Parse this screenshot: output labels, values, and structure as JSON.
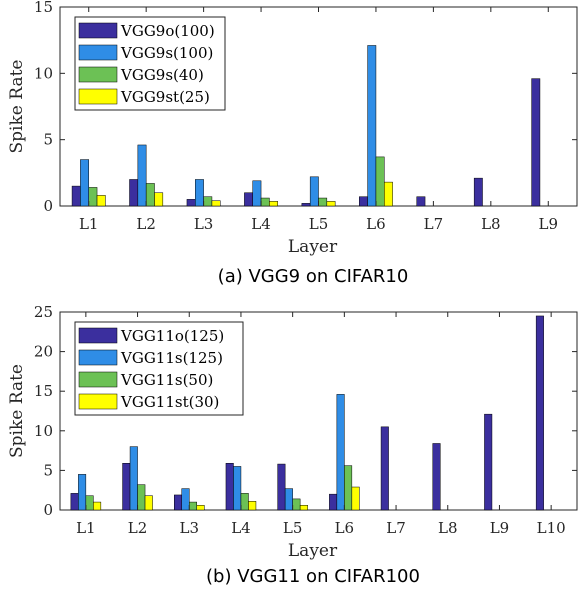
{
  "colors": {
    "VGGo": "#3B2F9E",
    "VGGs": "#2F8DE6",
    "VGGs_small": "#6CC155",
    "VGGst": "#FFFF00"
  },
  "chart_data": [
    {
      "type": "bar",
      "caption": "(a) VGG9 on CIFAR10",
      "xlabel": "Layer",
      "ylabel": "Spike Rate",
      "ylim": [
        0,
        15
      ],
      "yticks": [
        0,
        5,
        10,
        15
      ],
      "categories": [
        "L1",
        "L2",
        "L3",
        "L4",
        "L5",
        "L6",
        "L7",
        "L8",
        "L9"
      ],
      "legend_position": "top-left",
      "grid": false,
      "series": [
        {
          "name": "VGG9o(100)",
          "color_key": "VGGo",
          "values": [
            1.5,
            2.0,
            0.5,
            1.0,
            0.2,
            0.7,
            0.7,
            2.1,
            9.6
          ]
        },
        {
          "name": "VGG9s(100)",
          "color_key": "VGGs",
          "values": [
            3.5,
            4.6,
            2.0,
            1.9,
            2.2,
            12.1,
            null,
            null,
            null
          ]
        },
        {
          "name": "VGG9s(40)",
          "color_key": "VGGs_small",
          "values": [
            1.4,
            1.7,
            0.7,
            0.6,
            0.6,
            3.7,
            null,
            null,
            null
          ]
        },
        {
          "name": "VGG9st(25)",
          "color_key": "VGGst",
          "values": [
            0.8,
            1.0,
            0.4,
            0.35,
            0.35,
            1.8,
            null,
            null,
            null
          ]
        }
      ]
    },
    {
      "type": "bar",
      "caption": "(b) VGG11 on CIFAR100",
      "xlabel": "Layer",
      "ylabel": "Spike Rate",
      "ylim": [
        0,
        25
      ],
      "yticks": [
        0,
        5,
        10,
        15,
        20,
        25
      ],
      "categories": [
        "L1",
        "L2",
        "L3",
        "L4",
        "L5",
        "L6",
        "L7",
        "L8",
        "L9",
        "L10"
      ],
      "legend_position": "top-left",
      "grid": false,
      "series": [
        {
          "name": "VGG11o(125)",
          "color_key": "VGGo",
          "values": [
            2.1,
            5.9,
            1.9,
            5.9,
            5.8,
            2.0,
            10.5,
            8.4,
            12.1,
            24.5
          ]
        },
        {
          "name": "VGG11s(125)",
          "color_key": "VGGs",
          "values": [
            4.5,
            8.0,
            2.7,
            5.5,
            2.7,
            14.6,
            null,
            null,
            null,
            null
          ]
        },
        {
          "name": "VGG11s(50)",
          "color_key": "VGGs_small",
          "values": [
            1.8,
            3.2,
            1.0,
            2.1,
            1.4,
            5.6,
            null,
            null,
            null,
            null
          ]
        },
        {
          "name": "VGG11st(30)",
          "color_key": "VGGst",
          "values": [
            1.0,
            1.8,
            0.6,
            1.1,
            0.6,
            2.9,
            null,
            null,
            null,
            null
          ]
        }
      ]
    }
  ]
}
